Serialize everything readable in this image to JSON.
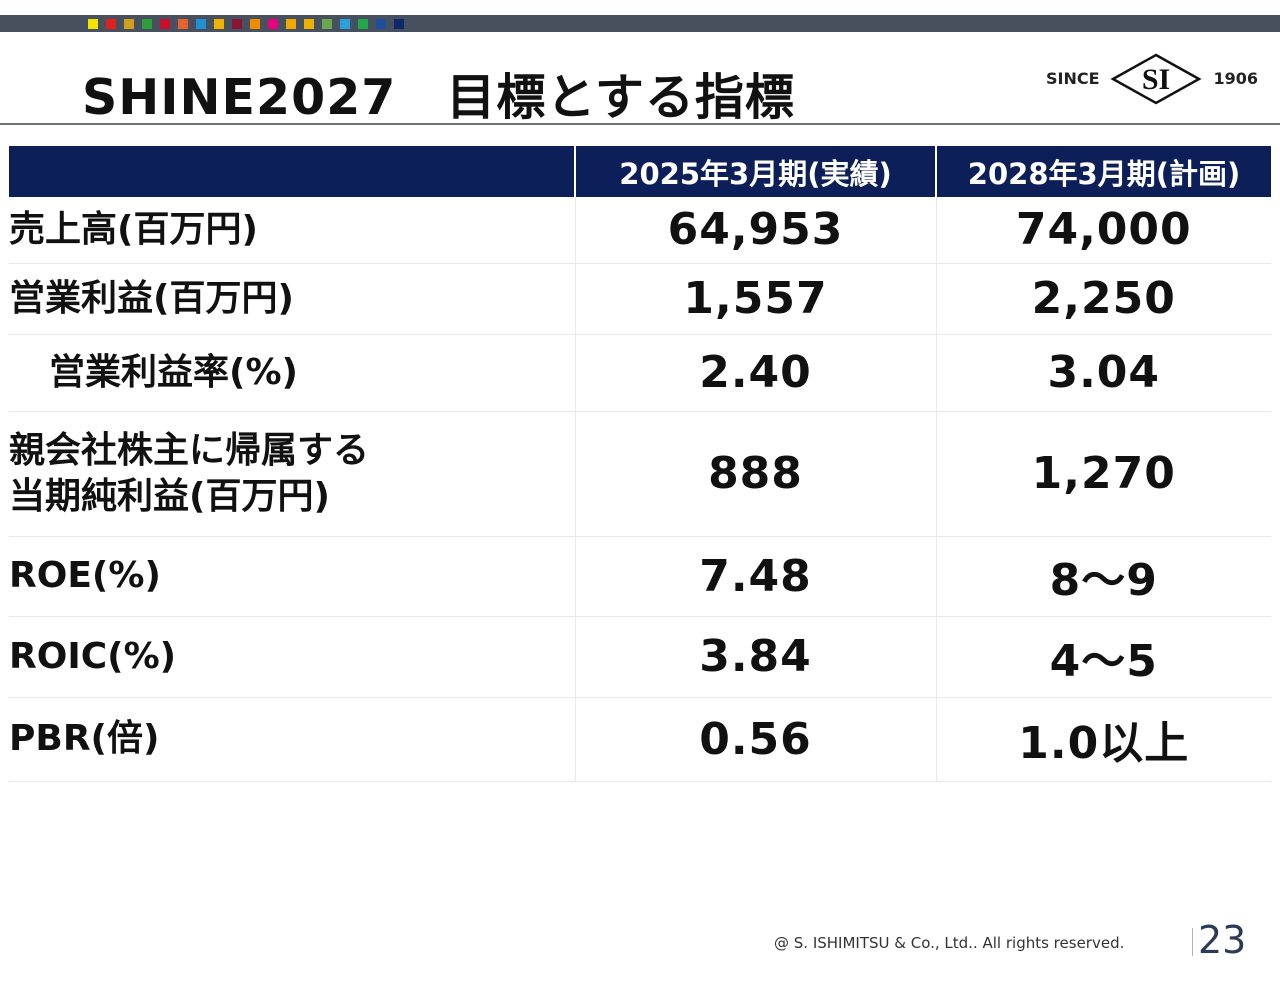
{
  "slide": {
    "title": "SHINE2027　目標とする指標",
    "page_number": "23",
    "copyright": "@ S. ISHIMITSU & Co., Ltd.. All rights reserved."
  },
  "logo": {
    "since": "SINCE",
    "initials": "SI",
    "year": "1906"
  },
  "colors": {
    "header_bg": "#0c1f58",
    "top_bar": "#47505e",
    "swatches": [
      "#f2e500",
      "#e02020",
      "#d4a017",
      "#2e9d3a",
      "#c8102e",
      "#e8602c",
      "#1e90d6",
      "#f0b400",
      "#8b1538",
      "#f08c00",
      "#e6007e",
      "#f0a800",
      "#f0b000",
      "#6aa84f",
      "#2a9fd8",
      "#22a84a",
      "#1f4e9c",
      "#0c2a6b"
    ]
  },
  "table": {
    "headers": [
      "",
      "2025年3月期(実績)",
      "2028年3月期(計画)"
    ],
    "rows": [
      {
        "label": "売上高(百万円)",
        "actual": "64,953",
        "plan": "74,000"
      },
      {
        "label": "営業利益(百万円)",
        "actual": "1,557",
        "plan": "2,250"
      },
      {
        "label": "営業利益率(%)",
        "actual": "2.40",
        "plan": "3.04"
      },
      {
        "label_line1": "親会社株主に帰属する",
        "label_line2": "当期純利益(百万円)",
        "actual": "888",
        "plan": "1,270"
      },
      {
        "label": "ROE(%)",
        "actual": "7.48",
        "plan": "8～9"
      },
      {
        "label": "ROIC(%)",
        "actual": "3.84",
        "plan": "4～5"
      },
      {
        "label": "PBR(倍)",
        "actual": "0.56",
        "plan": "1.0以上"
      }
    ]
  }
}
